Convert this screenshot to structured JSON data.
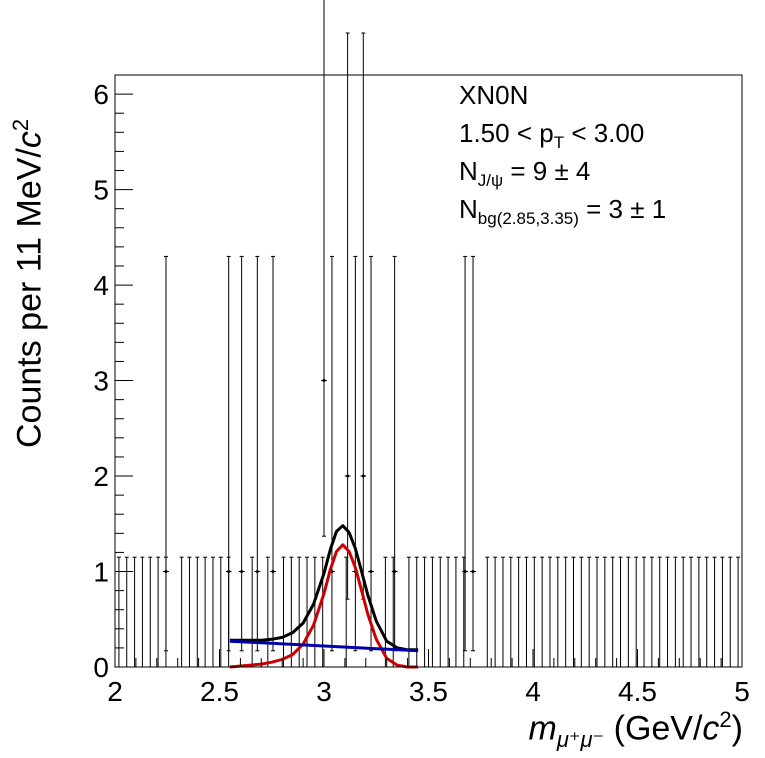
{
  "chart_data": {
    "type": "scatter",
    "xlim": [
      2,
      5
    ],
    "ylim": [
      0,
      6.2
    ],
    "x_ticks": [
      "2",
      "2.5",
      "3",
      "3.5",
      "4",
      "4.5",
      "5"
    ],
    "y_ticks": [
      "0",
      "1",
      "2",
      "3",
      "4",
      "5",
      "6"
    ],
    "ylabel_main": "Counts per  11 MeV/",
    "ylabel_c": "c",
    "ylabel_sup": "2",
    "xlabel_m": "m",
    "xlabel_sub": "μ⁺μ⁻",
    "xlabel_unit": " (GeV/",
    "xlabel_c": "c",
    "xlabel_sup": "2",
    "xlabel_close": ")",
    "annotations": {
      "l1": "XN0N",
      "l2_a": "1.50 < p",
      "l2_sub": "T",
      "l2_b": " < 3.00",
      "l3_a": "N",
      "l3_sub": "J/ψ",
      "l3_b": " =   9 ±   4",
      "l4_a": "N",
      "l4_sub": "bg(2.85,3.35)",
      "l4_b": " =   3 ±   1"
    },
    "bin_width": 0.0375,
    "empty_bin_upper_error": 1.15,
    "points": [
      {
        "x": 2.244,
        "y": 1,
        "lo": 0.83,
        "hi": 3.3
      },
      {
        "x": 2.544,
        "y": 1,
        "lo": 0.83,
        "hi": 3.3
      },
      {
        "x": 2.606,
        "y": 1,
        "lo": 0.83,
        "hi": 3.3
      },
      {
        "x": 2.681,
        "y": 1,
        "lo": 0.83,
        "hi": 3.3
      },
      {
        "x": 2.756,
        "y": 1,
        "lo": 0.83,
        "hi": 3.3
      },
      {
        "x": 3.0,
        "y": 3,
        "lo": 1.63,
        "hi": 5.92
      },
      {
        "x": 3.038,
        "y": 1,
        "lo": 0.83,
        "hi": 3.3
      },
      {
        "x": 3.113,
        "y": 2,
        "lo": 1.29,
        "hi": 4.64
      },
      {
        "x": 3.15,
        "y": 1,
        "lo": 0.83,
        "hi": 3.3
      },
      {
        "x": 3.188,
        "y": 2,
        "lo": 1.29,
        "hi": 4.64
      },
      {
        "x": 3.225,
        "y": 1,
        "lo": 0.83,
        "hi": 3.3
      },
      {
        "x": 3.338,
        "y": 1,
        "lo": 0.83,
        "hi": 3.3
      },
      {
        "x": 3.675,
        "y": 1,
        "lo": 0.83,
        "hi": 3.3
      },
      {
        "x": 3.713,
        "y": 1,
        "lo": 0.83,
        "hi": 3.3
      }
    ],
    "series": [
      {
        "color": "#000000",
        "x": [
          2.55,
          2.6,
          2.65,
          2.7,
          2.75,
          2.8,
          2.85,
          2.9,
          2.95,
          3.0,
          3.03,
          3.06,
          3.09,
          3.12,
          3.15,
          3.18,
          3.21,
          3.25,
          3.3,
          3.35,
          3.4,
          3.45
        ],
        "y": [
          0.28,
          0.28,
          0.28,
          0.28,
          0.29,
          0.31,
          0.36,
          0.46,
          0.66,
          0.98,
          1.23,
          1.42,
          1.48,
          1.41,
          1.24,
          1.0,
          0.75,
          0.48,
          0.27,
          0.2,
          0.18,
          0.18
        ]
      },
      {
        "color": "#cc0000",
        "x": [
          2.55,
          2.6,
          2.65,
          2.7,
          2.75,
          2.8,
          2.85,
          2.9,
          2.95,
          3.0,
          3.03,
          3.06,
          3.09,
          3.12,
          3.15,
          3.18,
          3.21,
          3.25,
          3.3,
          3.35,
          3.4,
          3.45
        ],
        "y": [
          0.0,
          0.01,
          0.02,
          0.03,
          0.05,
          0.08,
          0.13,
          0.24,
          0.44,
          0.77,
          1.02,
          1.21,
          1.28,
          1.21,
          1.04,
          0.8,
          0.55,
          0.29,
          0.09,
          0.02,
          0.0,
          0.0
        ]
      },
      {
        "color": "#0000aa",
        "x": [
          2.55,
          3.45
        ],
        "y": [
          0.27,
          0.17
        ]
      }
    ]
  }
}
